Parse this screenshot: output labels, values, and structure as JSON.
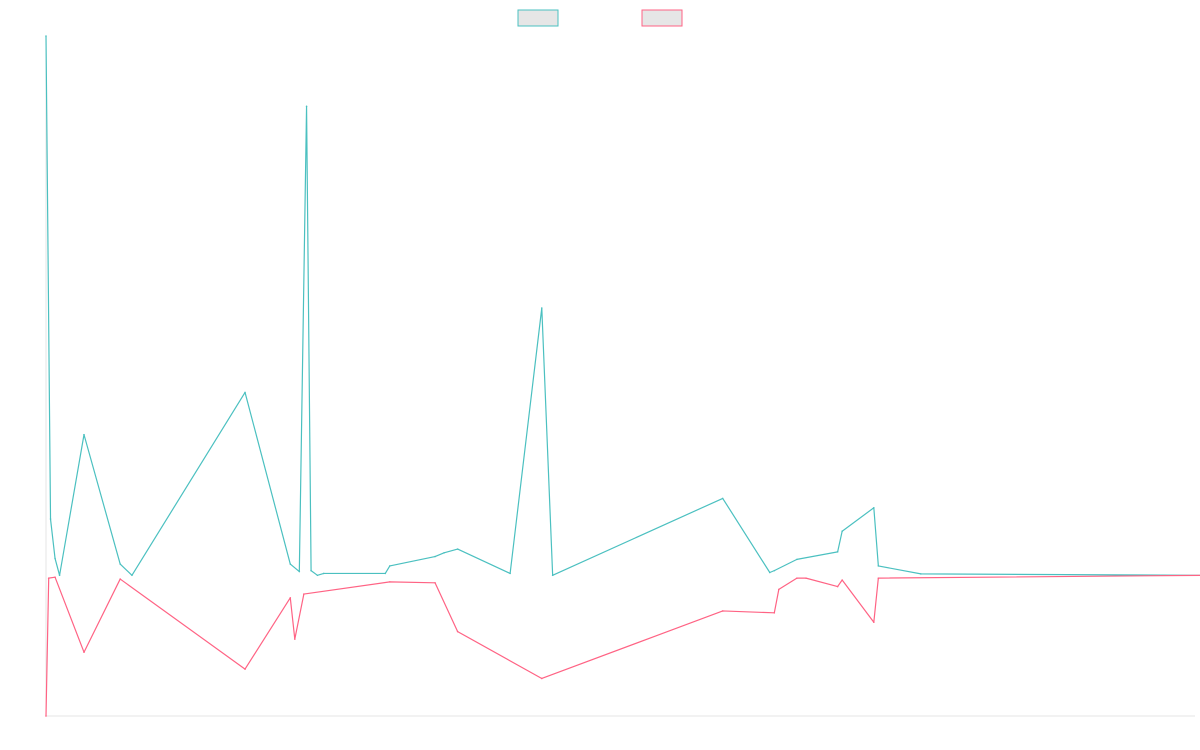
{
  "chart_data": {
    "type": "line",
    "title": "",
    "xlabel": "",
    "ylabel": "",
    "grid": false,
    "legend_position": "top-center",
    "x_count": 128,
    "baseline_value": 0,
    "series": [
      {
        "color": "#4bc0c0",
        "points": [
          [
            0,
            57.5
          ],
          [
            0.5,
            6
          ],
          [
            1,
            1.8
          ],
          [
            1.5,
            0
          ],
          [
            4.2,
            15
          ],
          [
            8.2,
            1.2
          ],
          [
            9.5,
            0
          ],
          [
            22,
            19.5
          ],
          [
            27,
            1.2
          ],
          [
            28,
            0.4
          ],
          [
            28.8,
            50
          ],
          [
            29.3,
            0.5
          ],
          [
            30,
            0
          ],
          [
            30.7,
            0.2
          ],
          [
            37.5,
            0.2
          ],
          [
            38,
            1
          ],
          [
            43,
            2
          ],
          [
            44,
            2.4
          ],
          [
            45.5,
            2.8
          ],
          [
            51.3,
            0.2
          ],
          [
            54.8,
            28.5
          ],
          [
            56,
            0
          ],
          [
            74.8,
            8.2
          ],
          [
            80,
            0.3
          ],
          [
            80.5,
            0.5
          ],
          [
            83,
            1.7
          ],
          [
            87.5,
            2.5
          ],
          [
            88,
            4.7
          ],
          [
            91.5,
            7.2
          ],
          [
            92,
            1
          ],
          [
            96.7,
            0.15
          ],
          [
            128,
            0
          ]
        ]
      },
      {
        "color": "#ff6384",
        "points": [
          [
            0,
            -15
          ],
          [
            0.3,
            -0.3
          ],
          [
            1,
            -0.2
          ],
          [
            4.2,
            -8.2
          ],
          [
            8.2,
            -0.4
          ],
          [
            22,
            -10
          ],
          [
            27,
            -2.4
          ],
          [
            27.5,
            -6.8
          ],
          [
            28.5,
            -2
          ],
          [
            38,
            -0.7
          ],
          [
            43,
            -0.8
          ],
          [
            45.5,
            -6
          ],
          [
            54.8,
            -11
          ],
          [
            74.8,
            -3.8
          ],
          [
            80.5,
            -4
          ],
          [
            81,
            -1.5
          ],
          [
            83,
            -0.3
          ],
          [
            84,
            -0.3
          ],
          [
            87.5,
            -1.2
          ],
          [
            88,
            -0.5
          ],
          [
            91.5,
            -5
          ],
          [
            92,
            -0.3
          ],
          [
            128,
            0
          ]
        ]
      }
    ],
    "ylim": [
      -15,
      57.5
    ]
  }
}
